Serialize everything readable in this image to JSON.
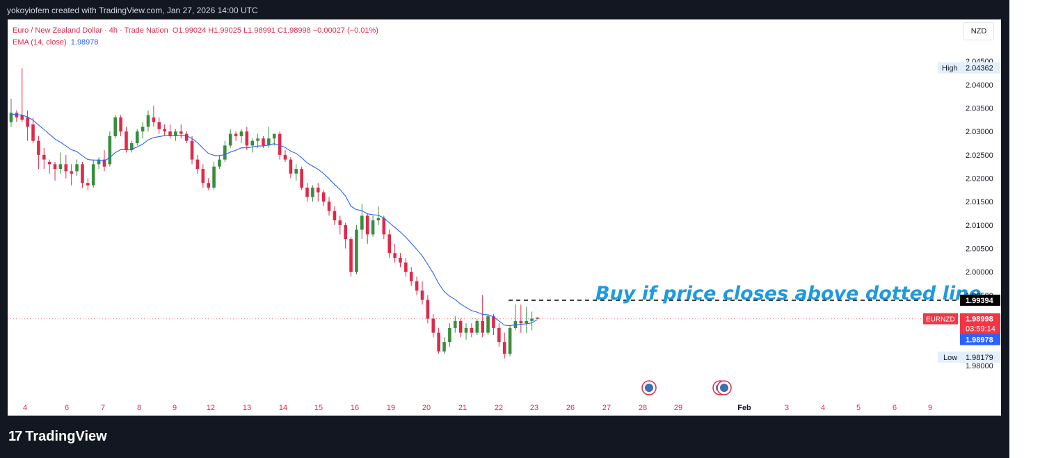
{
  "header": {
    "author_text": "yokoyiofem created with TradingView.com, Jan 27, 2026 14:00 UTC"
  },
  "legend": {
    "symbol_line": "Euro / New Zealand Dollar · 4h · Trade Nation",
    "ohlc": "O1.99024  H1.99025  L1.98991  C1.98998  −0.00027 (−0.01%)",
    "ema_label": "EMA (14, close)",
    "ema_value": "1.98978"
  },
  "currency": "NZD",
  "footer": {
    "brand": "TradingView"
  },
  "colors": {
    "up": "#26a69a",
    "up_body": "#388e3c",
    "down": "#ef5350",
    "down_body": "#e0294a",
    "ema": "#2962ff",
    "annotation": "#1e9be0"
  },
  "chart_data": {
    "type": "candlestick",
    "title": "Euro / New Zealand Dollar · 4h · Trade Nation",
    "ylim": [
      1.977,
      2.048
    ],
    "y_ticks": [
      "2.04500",
      "2.04000",
      "2.03500",
      "2.03000",
      "2.02500",
      "2.02000",
      "2.01500",
      "2.01000",
      "2.00500",
      "2.00000",
      "1.99500",
      "1.98000"
    ],
    "x_ticks": [
      "4",
      "6",
      "7",
      "8",
      "9",
      "12",
      "13",
      "14",
      "15",
      "16",
      "19",
      "20",
      "21",
      "22",
      "23",
      "26",
      "27",
      "28",
      "29",
      "Feb",
      "3",
      "4",
      "5",
      "6",
      "9"
    ],
    "series": [
      {
        "name": "EURNZD",
        "ohlc": [
          [
            2.032,
            2.037,
            2.031,
            2.034
          ],
          [
            2.034,
            2.0345,
            2.032,
            2.033
          ],
          [
            2.0335,
            2.0435,
            2.032,
            2.0325
          ],
          [
            2.033,
            2.0345,
            2.028,
            2.031
          ],
          [
            2.0315,
            2.033,
            2.0275,
            2.028
          ],
          [
            2.028,
            2.029,
            2.022,
            2.025
          ],
          [
            2.025,
            2.0265,
            2.022,
            2.024
          ],
          [
            2.0235,
            2.024,
            2.021,
            2.023
          ],
          [
            2.023,
            2.0235,
            2.0195,
            2.022
          ],
          [
            2.022,
            2.0255,
            2.021,
            2.023
          ],
          [
            2.023,
            2.025,
            2.02,
            2.0215
          ],
          [
            2.0215,
            2.023,
            2.0185,
            2.021
          ],
          [
            2.0215,
            2.024,
            2.0205,
            2.023
          ],
          [
            2.023,
            2.0235,
            2.018,
            2.019
          ],
          [
            2.019,
            2.02,
            2.0175,
            2.0185
          ],
          [
            2.0185,
            2.024,
            2.018,
            2.023
          ],
          [
            2.023,
            2.0245,
            2.022,
            2.024
          ],
          [
            2.024,
            2.026,
            2.0215,
            2.0225
          ],
          [
            2.023,
            2.03,
            2.0225,
            2.029
          ],
          [
            2.029,
            2.0335,
            2.0285,
            2.033
          ],
          [
            2.033,
            2.0335,
            2.029,
            2.03
          ],
          [
            2.03,
            2.031,
            2.0255,
            2.026
          ],
          [
            2.026,
            2.028,
            2.0255,
            2.0275
          ],
          [
            2.0275,
            2.0305,
            2.027,
            2.03
          ],
          [
            2.03,
            2.032,
            2.0285,
            2.031
          ],
          [
            2.031,
            2.0345,
            2.03,
            2.0335
          ],
          [
            2.033,
            2.0355,
            2.031,
            2.032
          ],
          [
            2.032,
            2.033,
            2.0295,
            2.0305
          ],
          [
            2.0305,
            2.0315,
            2.029,
            2.03
          ],
          [
            2.03,
            2.0315,
            2.0285,
            2.029
          ],
          [
            2.029,
            2.0305,
            2.028,
            2.03
          ],
          [
            2.03,
            2.0315,
            2.0285,
            2.0295
          ],
          [
            2.0295,
            2.03,
            2.0275,
            2.028
          ],
          [
            2.028,
            2.029,
            2.023,
            2.024
          ],
          [
            2.024,
            2.025,
            2.021,
            2.022
          ],
          [
            2.022,
            2.023,
            2.018,
            2.019
          ],
          [
            2.019,
            2.02,
            2.0175,
            2.018
          ],
          [
            2.018,
            2.0235,
            2.0175,
            2.0225
          ],
          [
            2.0225,
            2.025,
            2.022,
            2.024
          ],
          [
            2.024,
            2.028,
            2.0235,
            2.027
          ],
          [
            2.027,
            2.0305,
            2.0265,
            2.0295
          ],
          [
            2.0295,
            2.03,
            2.028,
            2.029
          ],
          [
            2.029,
            2.0305,
            2.0275,
            2.03
          ],
          [
            2.03,
            2.031,
            2.026,
            2.027
          ],
          [
            2.027,
            2.0285,
            2.0255,
            2.028
          ],
          [
            2.028,
            2.0295,
            2.0265,
            2.0285
          ],
          [
            2.0285,
            2.029,
            2.0265,
            2.027
          ],
          [
            2.027,
            2.031,
            2.0265,
            2.0285
          ],
          [
            2.0285,
            2.0295,
            2.027,
            2.0295
          ],
          [
            2.0295,
            2.03,
            2.024,
            2.025
          ],
          [
            2.025,
            2.026,
            2.0235,
            2.024
          ],
          [
            2.024,
            2.0245,
            2.02,
            2.021
          ],
          [
            2.021,
            2.023,
            2.0195,
            2.022
          ],
          [
            2.022,
            2.0225,
            2.0175,
            2.018
          ],
          [
            2.018,
            2.019,
            2.015,
            2.016
          ],
          [
            2.016,
            2.0185,
            2.015,
            2.018
          ],
          [
            2.018,
            2.019,
            2.015,
            2.017
          ],
          [
            2.017,
            2.0175,
            2.014,
            2.015
          ],
          [
            2.015,
            2.016,
            2.012,
            2.013
          ],
          [
            2.013,
            2.014,
            2.01,
            2.011
          ],
          [
            2.011,
            2.012,
            2.008,
            2.01
          ],
          [
            2.01,
            2.0105,
            2.005,
            2.007
          ],
          [
            2.007,
            2.0075,
            1.999,
            2.0
          ],
          [
            2.0,
            2.01,
            1.9995,
            2.009
          ],
          [
            2.009,
            2.0145,
            2.007,
            2.012
          ],
          [
            2.012,
            2.0125,
            2.006,
            2.008
          ],
          [
            2.008,
            2.012,
            2.0075,
            2.011
          ],
          [
            2.011,
            2.014,
            2.01,
            2.0115
          ],
          [
            2.0115,
            2.012,
            2.007,
            2.008
          ],
          [
            2.008,
            2.009,
            2.003,
            2.004
          ],
          [
            2.004,
            2.006,
            2.002,
            2.003
          ],
          [
            2.003,
            2.004,
            2.001,
            2.002
          ],
          [
            2.002,
            2.003,
            1.999,
            2.0
          ],
          [
            2.0,
            2.001,
            1.997,
            1.998
          ],
          [
            1.998,
            1.999,
            1.995,
            1.996
          ],
          [
            1.996,
            1.998,
            1.993,
            1.994
          ],
          [
            1.994,
            1.995,
            1.989,
            1.99
          ],
          [
            1.99,
            1.991,
            1.986,
            1.987
          ],
          [
            1.987,
            1.988,
            1.9825,
            1.983
          ],
          [
            1.983,
            1.986,
            1.9825,
            1.985
          ],
          [
            1.985,
            1.989,
            1.984,
            1.988
          ],
          [
            1.988,
            1.9905,
            1.987,
            1.9895
          ],
          [
            1.9895,
            1.99,
            1.986,
            1.987
          ],
          [
            1.987,
            1.989,
            1.9855,
            1.988
          ],
          [
            1.988,
            1.989,
            1.986,
            1.987
          ],
          [
            1.987,
            1.99,
            1.9865,
            1.9895
          ],
          [
            1.9895,
            1.995,
            1.986,
            1.987
          ],
          [
            1.987,
            1.991,
            1.9865,
            1.9905
          ],
          [
            1.9905,
            1.991,
            1.9865,
            1.988
          ],
          [
            1.988,
            1.989,
            1.984,
            1.985
          ],
          [
            1.985,
            1.987,
            1.9815,
            1.9825
          ],
          [
            1.9825,
            1.9885,
            1.982,
            1.988
          ],
          [
            1.988,
            1.993,
            1.9875,
            1.9895
          ],
          [
            1.9895,
            1.993,
            1.987,
            1.989
          ],
          [
            1.989,
            1.9925,
            1.987,
            1.9895
          ],
          [
            1.9895,
            1.9915,
            1.9875,
            1.99
          ],
          [
            1.99024,
            1.99025,
            1.98991,
            1.98998
          ]
        ]
      },
      {
        "name": "EMA (14, close)",
        "values": [
          2.0337,
          2.0336,
          2.0335,
          2.0331,
          2.0324,
          2.0314,
          2.0304,
          2.0294,
          2.0284,
          2.0277,
          2.0269,
          2.0261,
          2.0257,
          2.0248,
          2.024,
          2.0239,
          2.0239,
          2.0237,
          2.0244,
          2.0255,
          2.0261,
          2.0261,
          2.0262,
          2.0267,
          2.0273,
          2.0282,
          2.0287,
          2.0289,
          2.0291,
          2.0292,
          2.0292,
          2.0292,
          2.0291,
          2.0285,
          2.0276,
          2.0264,
          2.0253,
          2.0249,
          2.0248,
          2.0251,
          2.0256,
          2.026,
          2.0265,
          2.0265,
          2.0267,
          2.0269,
          2.0269,
          2.0271,
          2.0274,
          2.027,
          2.0266,
          2.0258,
          2.0253,
          2.0244,
          2.0233,
          2.0226,
          2.0219,
          2.021,
          2.0199,
          2.0187,
          2.0176,
          2.0162,
          2.014,
          2.0133,
          2.0131,
          2.0124,
          2.0122,
          2.0121,
          2.0115,
          2.0105,
          2.0095,
          2.0085,
          2.0074,
          2.0061,
          2.0048,
          2.0034,
          2.0016,
          1.9997,
          1.9975,
          1.9958,
          1.9948,
          1.9941,
          1.9931,
          1.9924,
          1.9917,
          1.9914,
          1.9909,
          1.9908,
          1.9904,
          1.9895,
          1.9886,
          1.9885,
          1.9887,
          1.9888,
          1.9889,
          1.9891,
          1.9898
        ]
      }
    ],
    "levels": [
      {
        "name": "High",
        "value": "2.04362"
      },
      {
        "name": "Low",
        "value": "1.98179"
      },
      {
        "name": "dotted",
        "value": "1.99394"
      },
      {
        "name": "EURNZD",
        "value": "1.98998",
        "countdown": "03:59:14"
      },
      {
        "name": "EMA",
        "value": "1.98978"
      }
    ],
    "annotation": "Buy if price closes above dotted line",
    "grid": false
  }
}
